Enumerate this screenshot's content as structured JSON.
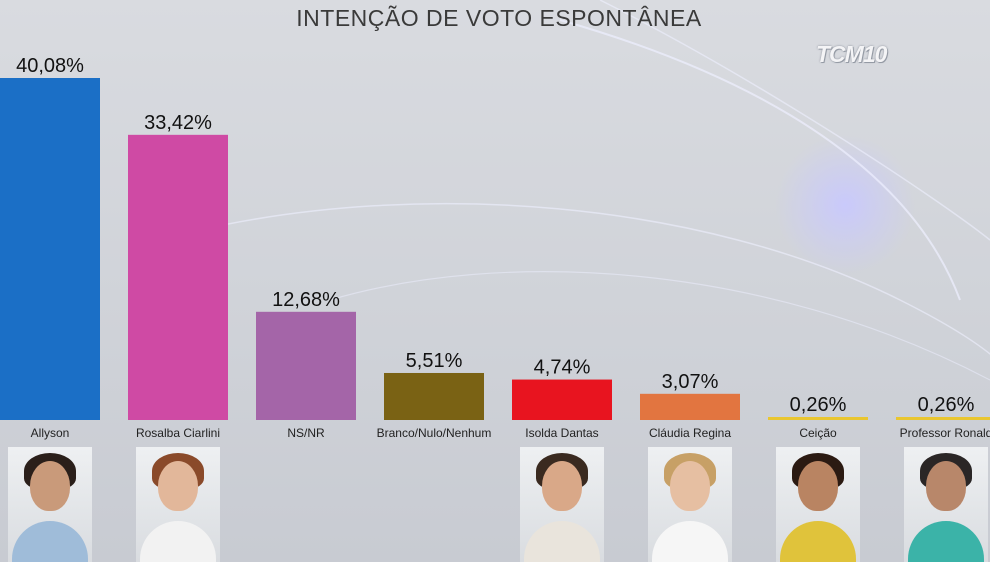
{
  "title": "INTENÇÃO DE VOTO ESPONTÂNEA",
  "logo_text": "TCM10",
  "chart_data": {
    "type": "bar",
    "title": "INTENÇÃO DE VOTO ESPONTÂNEA",
    "xlabel": "",
    "ylabel": "",
    "ylim": [
      0,
      40.08
    ],
    "grid": false,
    "categories": [
      "Allyson",
      "Rosalba Ciarlini",
      "NS/NR",
      "Branco/Nulo/Nenhum",
      "Isolda Dantas",
      "Cláudia Regina",
      "Ceição",
      "Professor Ronald"
    ],
    "values": [
      40.08,
      33.42,
      12.68,
      5.51,
      4.74,
      3.07,
      0.26,
      0.26
    ],
    "value_labels": [
      "40,08%",
      "33,42%",
      "12,68%",
      "5,51%",
      "4,74%",
      "3,07%",
      "0,26%",
      "0,26%"
    ],
    "colors": [
      "#1b6fc6",
      "#cf4aa4",
      "#a465a8",
      "#7a6214",
      "#e8141f",
      "#e27540",
      "#e9c630",
      "#e9c630"
    ]
  },
  "photos": [
    {
      "category": "Allyson",
      "skin": "#c99a7a",
      "hair": "#2a1f1a",
      "clothes": "#9fbcd9"
    },
    {
      "category": "Rosalba Ciarlini",
      "skin": "#e2b79a",
      "hair": "#8a4a2a",
      "clothes": "#f2f2f2"
    },
    {
      "category": "Isolda Dantas",
      "skin": "#d9a888",
      "hair": "#3a2a20",
      "clothes": "#e9e4dc"
    },
    {
      "category": "Cláudia Regina",
      "skin": "#e6bfa2",
      "hair": "#c7a066",
      "clothes": "#f6f6f6"
    },
    {
      "category": "Ceição",
      "skin": "#b98462",
      "hair": "#2b1a12",
      "clothes": "#e0c33b"
    },
    {
      "category": "Professor Ronald",
      "skin": "#b8876a",
      "hair": "#2a2626",
      "clothes": "#3bb3a8"
    }
  ]
}
